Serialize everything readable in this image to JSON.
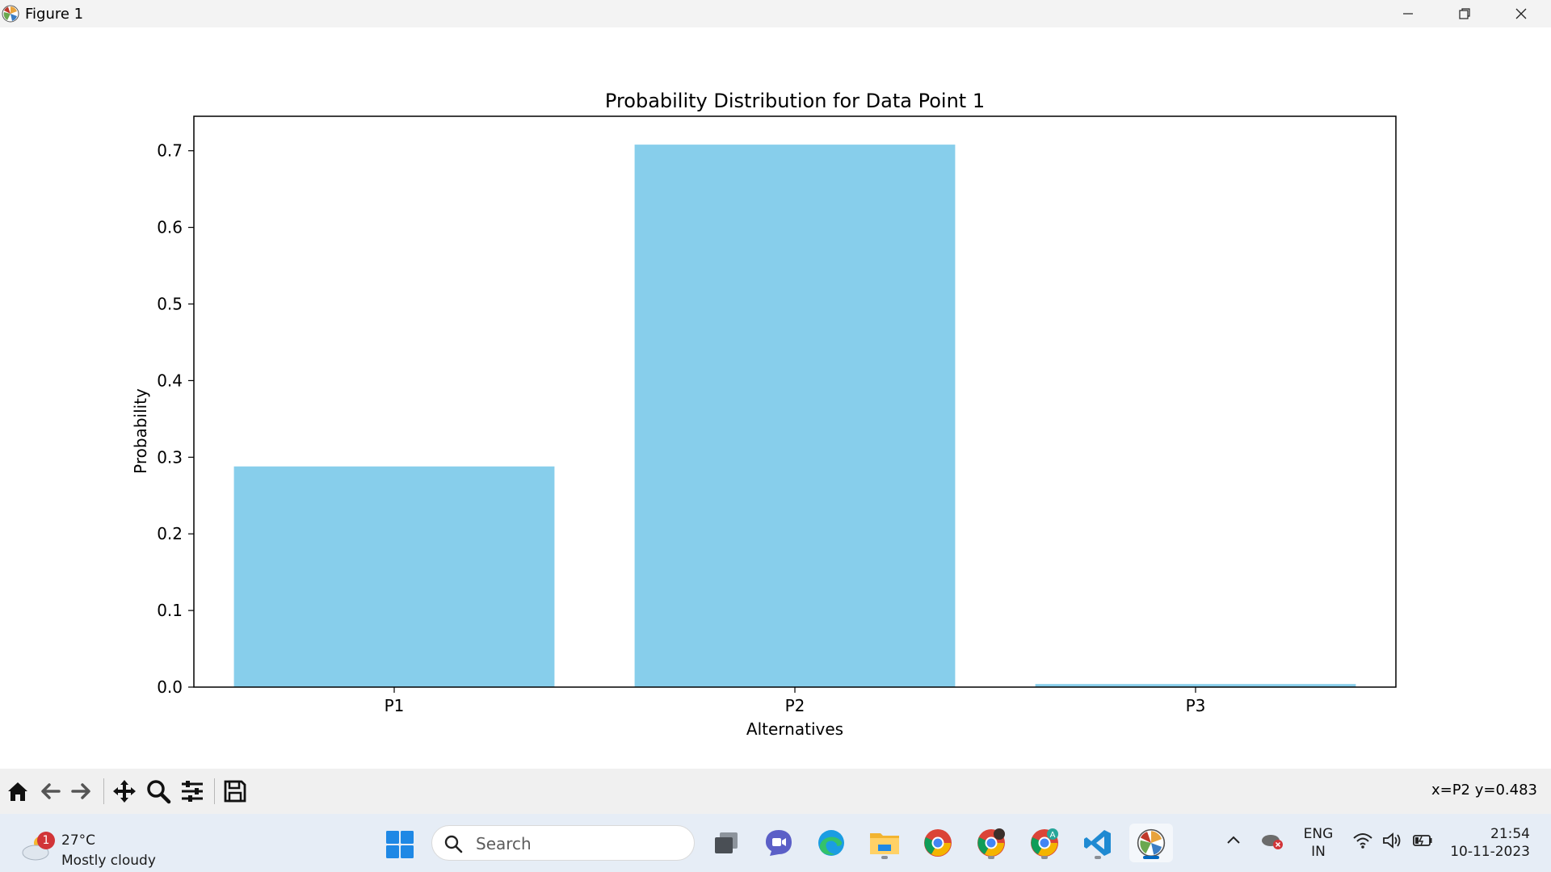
{
  "window": {
    "title": "Figure 1",
    "icons": {
      "app": "matplotlib-icon",
      "minimize": "minimize-icon",
      "maximize": "restore-icon",
      "close": "close-icon"
    }
  },
  "chart_data": {
    "type": "bar",
    "title": "Probability Distribution for Data Point 1",
    "xlabel": "Alternatives",
    "ylabel": "Probability",
    "categories": [
      "P1",
      "P2",
      "P3"
    ],
    "values": [
      0.288,
      0.708,
      0.004
    ],
    "ylim": [
      0,
      0.745
    ],
    "yticks": [
      0.0,
      0.1,
      0.2,
      0.3,
      0.4,
      0.5,
      0.6,
      0.7
    ],
    "ytick_labels": [
      "0.0",
      "0.1",
      "0.2",
      "0.3",
      "0.4",
      "0.5",
      "0.6",
      "0.7"
    ],
    "bar_color": "#87ceeb",
    "grid": false
  },
  "toolbar": {
    "tools": [
      {
        "name": "home-icon",
        "label": "Home"
      },
      {
        "name": "back-icon",
        "label": "Back"
      },
      {
        "name": "forward-icon",
        "label": "Forward"
      },
      {
        "name": "pan-icon",
        "label": "Pan"
      },
      {
        "name": "zoom-icon",
        "label": "Zoom"
      },
      {
        "name": "configure-subplots-icon",
        "label": "Configure subplots"
      },
      {
        "name": "save-icon",
        "label": "Save"
      }
    ],
    "coords": "x=P2 y=0.483"
  },
  "taskbar": {
    "weather": {
      "badge": "1",
      "temp": "27°C",
      "condition": "Mostly cloudy",
      "icon": "weather-cloudy-icon"
    },
    "search_placeholder": "Search",
    "apps": [
      {
        "name": "task-view-icon"
      },
      {
        "name": "teams-chat-icon"
      },
      {
        "name": "edge-icon"
      },
      {
        "name": "file-explorer-icon"
      },
      {
        "name": "chrome-icon"
      },
      {
        "name": "chrome-profile-icon"
      },
      {
        "name": "chrome-profile-a-icon"
      },
      {
        "name": "vscode-icon"
      },
      {
        "name": "matplotlib-icon"
      }
    ],
    "tray": {
      "lang_line1": "ENG",
      "lang_line2": "IN",
      "time": "21:54",
      "date": "10-11-2023"
    }
  }
}
